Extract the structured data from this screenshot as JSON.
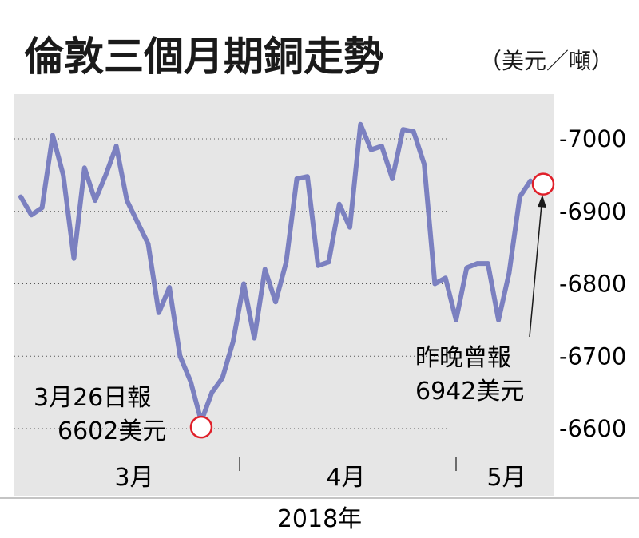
{
  "chart_data": {
    "type": "line",
    "title": "倫敦三個月期銅走勢",
    "unit": "（美元／噸）",
    "year_label": "2018年",
    "month_labels": [
      "3月",
      "4月",
      "5月"
    ],
    "yticks": [
      6600,
      6700,
      6800,
      6900,
      7000
    ],
    "ylim": [
      6560,
      7060
    ],
    "grid": true,
    "colors": {
      "line": "#7b80c0",
      "panel": "#e6e6e6",
      "marker": "#e0202a"
    },
    "series": [
      {
        "values": [
          6920,
          6895,
          6905,
          7005,
          6950,
          6835,
          6960,
          6915,
          6950,
          6990,
          6915,
          6885,
          6855,
          6760,
          6795,
          6700,
          6665,
          6610,
          6650,
          6670,
          6720,
          6800,
          6725,
          6820,
          6775,
          6830,
          6945,
          6948,
          6825,
          6830,
          6910,
          6878,
          7020,
          6985,
          6990,
          6945,
          7013,
          7010,
          6965,
          6800,
          6808,
          6750,
          6822,
          6828,
          6828,
          6750,
          6815,
          6920,
          6942
        ]
      }
    ],
    "annotations": [
      {
        "line1": "3月26日報",
        "line2": "6602美元",
        "point_index": 17,
        "value": 6602
      },
      {
        "line1": "昨晚曾報",
        "line2": "6942美元",
        "point_index": 48,
        "value": 6942
      }
    ]
  }
}
